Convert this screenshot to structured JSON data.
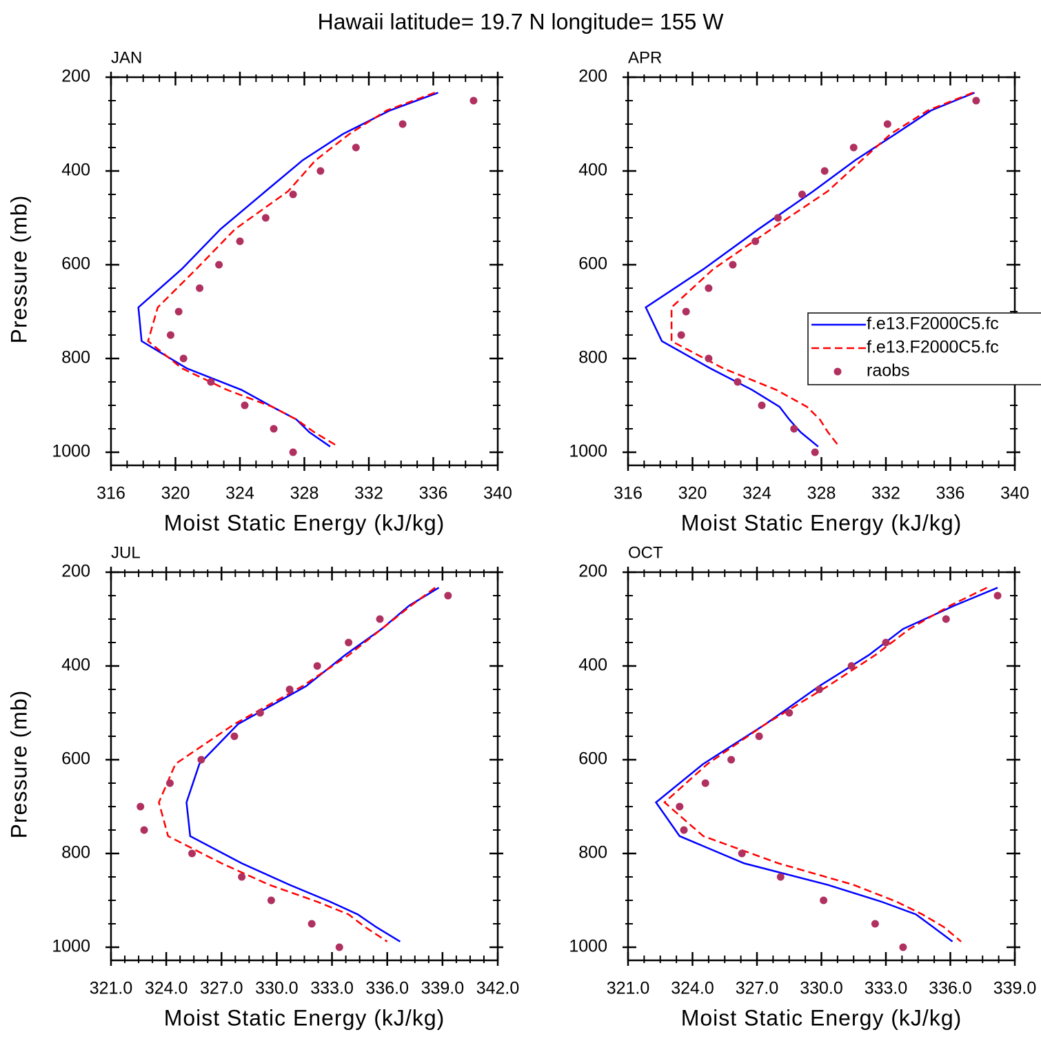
{
  "title": "Hawaii  latitude= 19.7 N longitude= 155 W",
  "chart_data": [
    {
      "type": "line",
      "title": "JAN",
      "xlabel": "Moist Static Energy (kJ/kg)",
      "ylabel": "Pressure (mb)",
      "xlim": [
        316,
        340
      ],
      "xticks": [
        316,
        320,
        324,
        328,
        332,
        336,
        340
      ],
      "ylim": [
        200,
        1028
      ],
      "y_reversed": true,
      "yticks": [
        200,
        400,
        600,
        800,
        1000
      ],
      "series": [
        {
          "color": "#0000ff",
          "style": "solid",
          "x": [
            336.3,
            333.3,
            330.4,
            327.9,
            325.6,
            322.8,
            320.4,
            317.7,
            317.9,
            320.7,
            324.1,
            326.0,
            327.5,
            328.3,
            329.6
          ],
          "y": [
            233,
            271,
            321,
            377,
            443,
            524,
            609,
            691,
            763,
            821,
            867,
            903,
            930,
            957,
            988
          ]
        },
        {
          "color": "#ff0000",
          "style": "dashed",
          "x": [
            336.1,
            333.1,
            330.8,
            328.7,
            327.0,
            323.7,
            321.3,
            318.9,
            318.3,
            320.4,
            323.2,
            326.0,
            327.5,
            328.6,
            330.1
          ],
          "y": [
            233,
            271,
            321,
            377,
            443,
            524,
            609,
            691,
            763,
            821,
            867,
            903,
            930,
            957,
            988
          ]
        },
        {
          "color": "#b03060",
          "style": "markers",
          "x": [
            338.5,
            334.1,
            331.2,
            329.0,
            327.3,
            325.6,
            324.0,
            322.7,
            321.5,
            320.2,
            319.7,
            320.5,
            322.2,
            324.3,
            326.1,
            327.3
          ],
          "y": [
            250,
            300,
            350,
            400,
            450,
            500,
            550,
            600,
            650,
            700,
            750,
            800,
            850,
            900,
            950,
            1000
          ]
        }
      ]
    },
    {
      "type": "line",
      "title": "APR",
      "xlabel": "Moist Static Energy (kJ/kg)",
      "xlim": [
        316,
        340
      ],
      "xticks": [
        316,
        320,
        324,
        328,
        332,
        336,
        340
      ],
      "ylim": [
        200,
        1028
      ],
      "y_reversed": true,
      "yticks": [
        200,
        400,
        600,
        800,
        1000
      ],
      "legend": "center right",
      "series": [
        {
          "name": "f.e13.F2000C5.fc",
          "color": "#0000ff",
          "style": "solid",
          "x": [
            337.5,
            334.8,
            332.6,
            330.1,
            327.5,
            324.1,
            320.7,
            317.1,
            318.1,
            321.1,
            323.7,
            325.4,
            326.0,
            326.7,
            327.8
          ],
          "y": [
            233,
            271,
            321,
            377,
            443,
            524,
            609,
            691,
            763,
            821,
            867,
            903,
            930,
            957,
            988
          ]
        },
        {
          "name": "f.e13.F2000C5.fc",
          "color": "#ff0000",
          "style": "dashed",
          "x": [
            337.4,
            334.6,
            332.3,
            330.5,
            328.4,
            324.9,
            321.3,
            318.7,
            318.7,
            321.9,
            325.2,
            327.1,
            327.9,
            328.4,
            329.1
          ],
          "y": [
            233,
            271,
            321,
            377,
            443,
            524,
            609,
            691,
            763,
            821,
            867,
            903,
            930,
            957,
            988
          ]
        },
        {
          "name": "raobs",
          "color": "#b03060",
          "style": "markers",
          "x": [
            337.6,
            332.1,
            330.0,
            328.2,
            326.8,
            325.3,
            323.9,
            322.5,
            321.0,
            319.6,
            319.3,
            321.0,
            322.8,
            324.3,
            326.3,
            327.6
          ],
          "y": [
            250,
            300,
            350,
            400,
            450,
            500,
            550,
            600,
            650,
            700,
            750,
            800,
            850,
            900,
            950,
            1000
          ]
        }
      ]
    },
    {
      "type": "line",
      "title": "JUL",
      "xlabel": "Moist Static Energy (kJ/kg)",
      "ylabel": "Pressure (mb)",
      "xlim": [
        321,
        342
      ],
      "xticks": [
        {
          "value": 321,
          "label": "321.0"
        },
        {
          "value": 324,
          "label": "324.0"
        },
        {
          "value": 327,
          "label": "327.0"
        },
        {
          "value": 330,
          "label": "330.0"
        },
        {
          "value": 333,
          "label": "333.0"
        },
        {
          "value": 336,
          "label": "336.0"
        },
        {
          "value": 339,
          "label": "339.0"
        },
        {
          "value": 342,
          "label": "342.0"
        }
      ],
      "ylim": [
        200,
        1028
      ],
      "y_reversed": true,
      "yticks": [
        200,
        400,
        600,
        800,
        1000
      ],
      "series": [
        {
          "color": "#0000ff",
          "style": "solid",
          "x": [
            338.8,
            337.2,
            335.7,
            333.7,
            331.6,
            327.9,
            325.8,
            325.1,
            325.3,
            328.1,
            330.7,
            332.9,
            334.4,
            335.4,
            336.7
          ],
          "y": [
            233,
            271,
            321,
            377,
            443,
            524,
            609,
            691,
            763,
            821,
            867,
            903,
            930,
            957,
            988
          ]
        },
        {
          "color": "#ff0000",
          "style": "dashed",
          "x": [
            338.6,
            337.3,
            335.7,
            333.9,
            331.4,
            327.7,
            324.5,
            323.6,
            324.1,
            327.0,
            329.6,
            332.2,
            333.9,
            334.8,
            336.0
          ],
          "y": [
            233,
            271,
            321,
            377,
            443,
            524,
            609,
            691,
            763,
            821,
            867,
            903,
            930,
            957,
            988
          ]
        },
        {
          "color": "#b03060",
          "style": "markers",
          "x": [
            339.3,
            335.6,
            333.9,
            332.2,
            330.7,
            329.1,
            327.7,
            325.9,
            324.2,
            322.6,
            322.8,
            325.4,
            328.1,
            329.7,
            331.9,
            333.4
          ],
          "y": [
            250,
            300,
            350,
            400,
            450,
            500,
            550,
            600,
            650,
            700,
            750,
            800,
            850,
            900,
            950,
            1000
          ]
        }
      ]
    },
    {
      "type": "line",
      "title": "OCT",
      "xlabel": "Moist Static Energy (kJ/kg)",
      "xlim": [
        321,
        339
      ],
      "xticks": [
        {
          "value": 321,
          "label": "321.0"
        },
        {
          "value": 324,
          "label": "324.0"
        },
        {
          "value": 327,
          "label": "327.0"
        },
        {
          "value": 330,
          "label": "330.0"
        },
        {
          "value": 333,
          "label": "333.0"
        },
        {
          "value": 336,
          "label": "336.0"
        },
        {
          "value": 339,
          "label": "339.0"
        }
      ],
      "ylim": [
        200,
        1028
      ],
      "y_reversed": true,
      "yticks": [
        200,
        400,
        600,
        800,
        1000
      ],
      "series": [
        {
          "color": "#0000ff",
          "style": "solid",
          "x": [
            338.2,
            336.2,
            333.8,
            332.2,
            329.9,
            327.4,
            324.5,
            322.3,
            323.4,
            326.4,
            330.3,
            332.8,
            334.4,
            335.2,
            336.1
          ],
          "y": [
            233,
            271,
            321,
            377,
            443,
            524,
            609,
            691,
            763,
            821,
            867,
            903,
            930,
            957,
            988
          ]
        },
        {
          "color": "#ff0000",
          "style": "dashed",
          "x": [
            337.7,
            336.0,
            334.1,
            332.5,
            330.3,
            327.4,
            324.7,
            322.7,
            324.5,
            328.0,
            331.5,
            333.5,
            334.7,
            335.7,
            336.5
          ],
          "y": [
            233,
            271,
            321,
            377,
            443,
            524,
            609,
            691,
            763,
            821,
            867,
            903,
            930,
            957,
            988
          ]
        },
        {
          "color": "#b03060",
          "style": "markers",
          "x": [
            338.2,
            335.8,
            333.0,
            331.4,
            329.9,
            328.5,
            327.1,
            325.8,
            324.6,
            323.4,
            323.6,
            326.3,
            328.1,
            330.1,
            332.5,
            333.8
          ],
          "y": [
            250,
            300,
            350,
            400,
            450,
            500,
            550,
            600,
            650,
            700,
            750,
            800,
            850,
            900,
            950,
            1000
          ]
        }
      ]
    }
  ]
}
